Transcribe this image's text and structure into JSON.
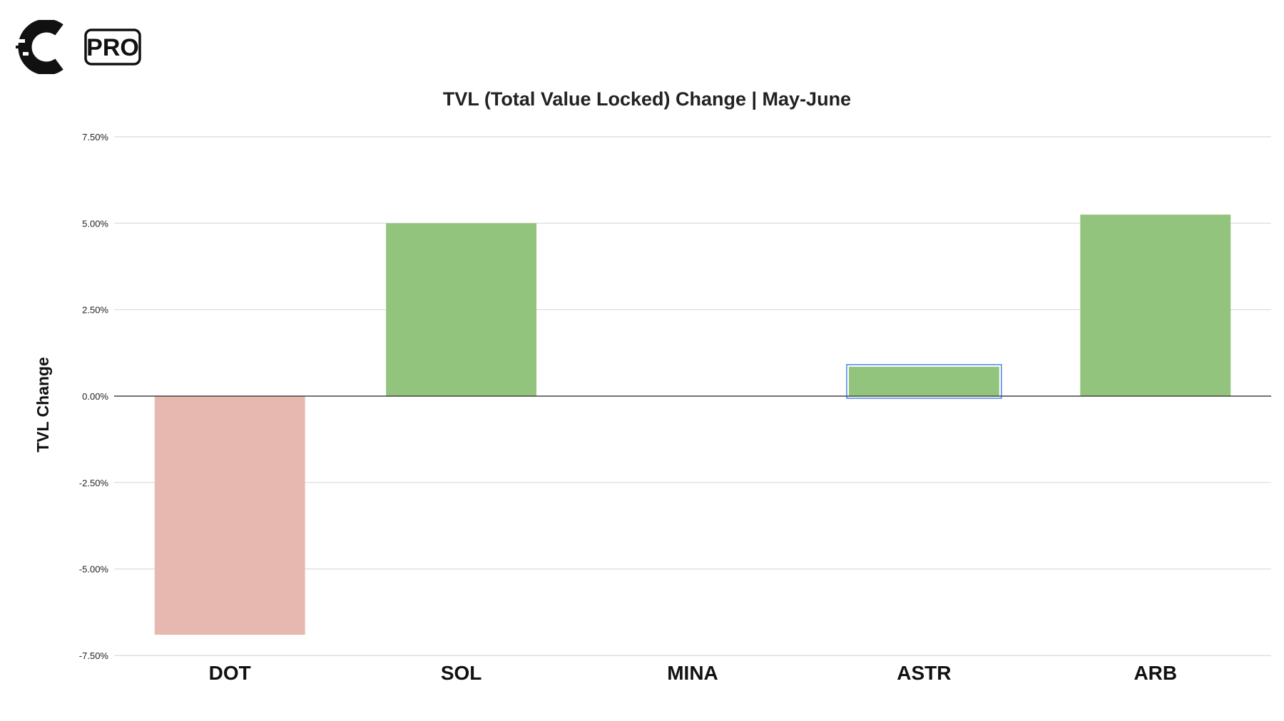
{
  "brand": {
    "logo_text": "PRO"
  },
  "chart_data": {
    "type": "bar",
    "title": "TVL (Total Value Locked) Change | May-June",
    "xlabel": "",
    "ylabel": "TVL Change",
    "categories": [
      "DOT",
      "SOL",
      "MINA",
      "ASTR",
      "ARB"
    ],
    "values": [
      -6.9,
      5.0,
      0.0,
      0.85,
      5.25
    ],
    "ylim": [
      -7.5,
      7.5
    ],
    "yticks": [
      7.5,
      5.0,
      2.5,
      0.0,
      -2.5,
      -5.0,
      -7.5
    ],
    "ytick_labels": [
      "7.50%",
      "5.00%",
      "2.50%",
      "0.00%",
      "-2.50%",
      "-5.00%",
      "-7.50%"
    ],
    "grid": true,
    "legend": "none",
    "colors": {
      "positive": "#93c47d",
      "negative": "#e6b8af",
      "gridline": "#d9d9d9",
      "zero_line": "#444444",
      "selection": "#4a86e8"
    },
    "selected_category": "ASTR"
  }
}
